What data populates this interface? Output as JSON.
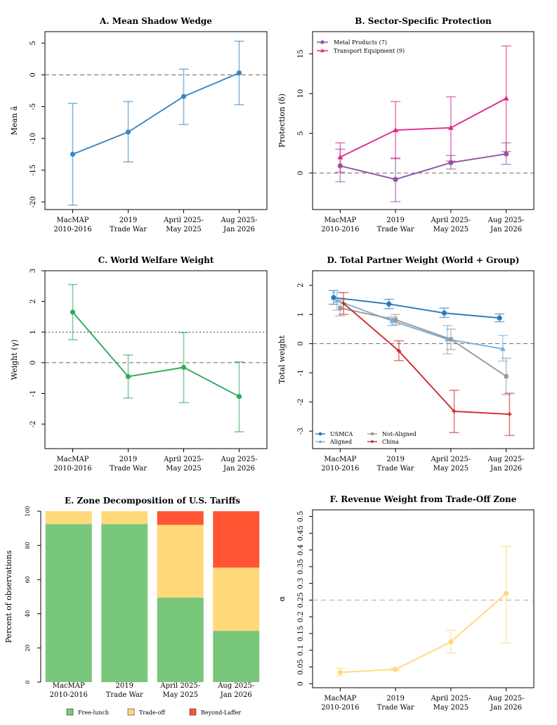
{
  "chart_data": [
    {
      "panel": "A",
      "type": "line",
      "title": "A. Mean Shadow Wedge",
      "ylabel": "Mean ã",
      "categories": [
        "MacMAP\n2010-2016",
        "2019\nTrade War",
        "April 2025-\nMay 2025",
        "Aug 2025-\nJan 2026"
      ],
      "ylim": [
        -21.2,
        6.8
      ],
      "yticks": [
        -20,
        -15,
        -10,
        -5,
        0,
        5
      ],
      "ytick_labels": [
        "-20",
        "-15",
        "-10",
        "-5",
        "0",
        "5"
      ],
      "reference_lines": [
        {
          "y": 0,
          "style": "dashed"
        }
      ],
      "series": [
        {
          "name": "Mean shadow wedge",
          "color": "#3a86c2",
          "marker": "circle",
          "values": [
            -12.5,
            -9.0,
            -3.4,
            0.3
          ],
          "lower": [
            -20.5,
            -13.7,
            -7.8,
            -4.7
          ],
          "upper": [
            -4.5,
            -4.2,
            0.9,
            5.3
          ]
        }
      ]
    },
    {
      "panel": "B",
      "type": "line",
      "title": "B. Sector-Specific Protection",
      "ylabel": "Protection (δ)",
      "categories": [
        "MacMAP\n2010-2016",
        "2019\nTrade War",
        "April 2025-\nMay 2025",
        "Aug 2025-\nJan 2026"
      ],
      "ylim": [
        -4.6,
        17.8
      ],
      "yticks": [
        0,
        5,
        10,
        15
      ],
      "ytick_labels": [
        "0",
        "5",
        "10",
        "15"
      ],
      "reference_lines": [
        {
          "y": 0,
          "style": "dashed"
        }
      ],
      "legend_position": "top-left",
      "series": [
        {
          "name": "Metal Products (7)",
          "color": "#8e55a8",
          "marker": "circle",
          "values": [
            0.9,
            -0.8,
            1.3,
            2.4
          ],
          "lower": [
            -1.1,
            -3.6,
            0.5,
            1.1
          ],
          "upper": [
            3.0,
            1.9,
            2.2,
            3.8
          ]
        },
        {
          "name": "Transport Equipment (9)",
          "color": "#de2a8a",
          "marker": "triangle",
          "values": [
            2.0,
            5.4,
            5.7,
            9.4
          ],
          "lower": [
            0.1,
            1.8,
            1.5,
            2.7
          ],
          "upper": [
            3.8,
            9.0,
            9.6,
            16.0
          ]
        }
      ]
    },
    {
      "panel": "C",
      "type": "line",
      "title": "C. World Welfare Weight",
      "ylabel": "Weight (γ)",
      "categories": [
        "MacMAP\n2010-2016",
        "2019\nTrade War",
        "April 2025-\nMay 2025",
        "Aug 2025-\nJan 2026"
      ],
      "ylim": [
        -2.8,
        3.0
      ],
      "yticks": [
        -2,
        -1,
        0,
        1,
        2,
        3
      ],
      "ytick_labels": [
        "-2",
        "-1",
        "0",
        "1",
        "2",
        "3"
      ],
      "reference_lines": [
        {
          "y": 0,
          "style": "dashed"
        },
        {
          "y": 1,
          "style": "dotted"
        }
      ],
      "series": [
        {
          "name": "World welfare weight",
          "color": "#2eac5c",
          "marker": "circle",
          "values": [
            1.65,
            -0.45,
            -0.15,
            -1.1
          ],
          "lower": [
            0.75,
            -1.15,
            -1.3,
            -2.25
          ],
          "upper": [
            2.55,
            0.25,
            0.98,
            0.03
          ]
        }
      ]
    },
    {
      "panel": "D",
      "type": "line",
      "title": "D. Total Partner Weight (World + Group)",
      "ylabel": "Total weight",
      "categories": [
        "MacMAP\n2010-2016",
        "2019\nTrade War",
        "April 2025-\nMay 2025",
        "Aug 2025-\nJan 2026"
      ],
      "ylim": [
        -3.6,
        2.5
      ],
      "yticks": [
        -3,
        -2,
        -1,
        0,
        1,
        2
      ],
      "ytick_labels": [
        "-3",
        "-2",
        "-1",
        "0",
        "1",
        "2"
      ],
      "reference_lines": [
        {
          "y": 0,
          "style": "dashed"
        }
      ],
      "legend_position": "bottom-left",
      "series": [
        {
          "name": "USMCA",
          "color": "#2e78b7",
          "marker": "circle",
          "offset": -0.12,
          "values": [
            1.58,
            1.36,
            1.05,
            0.88
          ],
          "lower": [
            1.35,
            1.2,
            0.9,
            0.75
          ],
          "upper": [
            1.82,
            1.52,
            1.22,
            1.02
          ]
        },
        {
          "name": "Aligned",
          "color": "#7ab0dd",
          "marker": "triangle",
          "offset": -0.06,
          "values": [
            1.48,
            0.78,
            0.15,
            -0.18
          ],
          "lower": [
            1.15,
            0.62,
            -0.35,
            -0.6
          ],
          "upper": [
            1.75,
            0.92,
            0.62,
            0.28
          ]
        },
        {
          "name": "Not-Aligned",
          "color": "#999999",
          "marker": "square",
          "offset": 0.0,
          "values": [
            1.22,
            0.82,
            0.15,
            -1.12
          ],
          "lower": [
            0.95,
            0.65,
            -0.2,
            -1.75
          ],
          "upper": [
            1.5,
            1.0,
            0.5,
            -0.5
          ]
        },
        {
          "name": "China",
          "color": "#cf2a2a",
          "marker": "plus",
          "offset": 0.06,
          "values": [
            1.38,
            -0.25,
            -2.32,
            -2.42
          ],
          "lower": [
            1.0,
            -0.58,
            -3.05,
            -3.15
          ],
          "upper": [
            1.75,
            0.1,
            -1.6,
            -1.7
          ]
        }
      ]
    },
    {
      "panel": "E",
      "type": "bar",
      "stacked": true,
      "title": "E. Zone Decomposition of U.S. Tariffs",
      "ylabel": "Percent of observations",
      "categories": [
        "MacMAP\n2010-2016",
        "2019\nTrade War",
        "April 2025-\nMay 2025",
        "Aug 2025-\nJan 2026"
      ],
      "ylim": [
        0,
        100
      ],
      "yticks": [
        0,
        20,
        40,
        60,
        80,
        100
      ],
      "ytick_labels": [
        "0",
        "20",
        "40",
        "60",
        "80",
        "100"
      ],
      "legend_position": "bottom-center",
      "series": [
        {
          "name": "Free-lunch",
          "color": "#79c77a",
          "values": [
            92.5,
            92.5,
            49.5,
            30.0
          ]
        },
        {
          "name": "Trade-off",
          "color": "#ffd97a",
          "values": [
            7.5,
            7.5,
            42.5,
            37.0
          ]
        },
        {
          "name": "Beyond-Laffer",
          "color": "#ff5533",
          "values": [
            0.0,
            0.0,
            8.0,
            33.0
          ]
        }
      ]
    },
    {
      "panel": "F",
      "type": "line",
      "title": "F. Revenue Weight from Trade-Off Zone",
      "ylabel": "α",
      "categories": [
        "MacMAP\n2010-2016",
        "2019\nTrade War",
        "April 2025-\nMay 2025",
        "Aug 2025-\nJan 2026"
      ],
      "ylim": [
        -0.012,
        0.52
      ],
      "yticks": [
        0,
        0.05,
        0.1,
        0.15,
        0.2,
        0.25,
        0.3,
        0.35,
        0.4,
        0.45,
        0.5
      ],
      "ytick_labels": [
        "0",
        "0.05",
        "0.1",
        "0.15",
        "0.2",
        "0.25",
        "0.3",
        "0.35",
        "0.4",
        "0.45",
        "0.5"
      ],
      "reference_lines": [
        {
          "y": 0.25,
          "style": "dashed-light"
        }
      ],
      "series": [
        {
          "name": "Revenue weight",
          "color": "#ffd97a",
          "marker": "circle",
          "values": [
            0.034,
            0.043,
            0.125,
            0.27
          ],
          "lower": [
            0.024,
            0.04,
            0.092,
            0.122
          ],
          "upper": [
            0.046,
            0.047,
            0.16,
            0.41
          ]
        }
      ]
    }
  ]
}
